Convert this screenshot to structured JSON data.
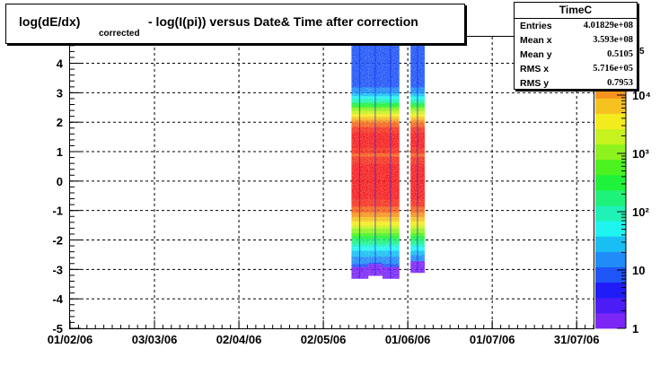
{
  "title": {
    "main": "log(dE/dx)",
    "subscript": "corrected",
    "rest": "- log(I(pi)) versus Date& Time after correction"
  },
  "stats": {
    "name": "TimeC",
    "rows": [
      {
        "label": "Entries",
        "value": "4.01829e+08"
      },
      {
        "label": "Mean x",
        "value": "3.593e+08"
      },
      {
        "label": "Mean y",
        "value": "0.5105"
      },
      {
        "label": "RMS x",
        "value": "5.716e+05"
      },
      {
        "label": "RMS y",
        "value": "0.7953"
      }
    ]
  },
  "chart_data": {
    "type": "heatmap",
    "title": "log(dE/dx) corrected - log(I(pi)) versus Date& Time after correction",
    "x_axis": {
      "type": "date",
      "range": [
        "2006-02-01",
        "2006-08-06"
      ],
      "ticks": [
        {
          "date": "2006-02-01",
          "label": "01/02/06"
        },
        {
          "date": "2006-03-03",
          "label": "03/03/06"
        },
        {
          "date": "2006-04-02",
          "label": "02/04/06"
        },
        {
          "date": "2006-05-02",
          "label": "02/05/06"
        },
        {
          "date": "2006-06-01",
          "label": "01/06/06"
        },
        {
          "date": "2006-07-01",
          "label": "01/07/06"
        },
        {
          "date": "2006-07-31",
          "label": "31/07/06"
        }
      ]
    },
    "y_axis": {
      "range": [
        -5,
        4.9
      ],
      "ticks": [
        -5,
        -4,
        -3,
        -2,
        -1,
        0,
        1,
        2,
        3,
        4
      ],
      "tick_labels": [
        "-5",
        "-4",
        "-3",
        "-2",
        "-1",
        "0",
        "1",
        "2",
        "3",
        "4"
      ]
    },
    "grid": true,
    "z_axis": {
      "scale": "log",
      "range": [
        1,
        100000
      ],
      "ticks": [
        1,
        10,
        100,
        1000,
        10000
      ],
      "tick_labels": [
        "1",
        "10",
        "10²",
        "10³",
        "10⁴"
      ],
      "top_label_fragment": "5",
      "palette": [
        "#7b26f5",
        "#4b1cf5",
        "#1f1cf7",
        "#1f55f7",
        "#1f8cf7",
        "#19bff3",
        "#1ff4f0",
        "#1ff2b7",
        "#1ff27a",
        "#1ff23a",
        "#4cf21f",
        "#8ef21f",
        "#c6f21f",
        "#f2ec1f",
        "#f6c21f",
        "#f6931f",
        "#f6641f",
        "#f6321f",
        "#f61f1f"
      ]
    },
    "data_bands": [
      {
        "start": "2006-05-12",
        "end": "2006-05-18",
        "y_min": -3.3,
        "y_max": 4.7
      },
      {
        "start": "2006-05-18",
        "end": "2006-05-23",
        "y_min": -3.2,
        "y_max": 4.7
      },
      {
        "start": "2006-05-23",
        "end": "2006-05-29",
        "y_min": -3.3,
        "y_max": 4.7
      },
      {
        "start": "2006-06-02",
        "end": "2006-06-07",
        "y_min": -3.1,
        "y_max": 4.7
      }
    ],
    "peaks_y": [
      0,
      1.4
    ]
  }
}
